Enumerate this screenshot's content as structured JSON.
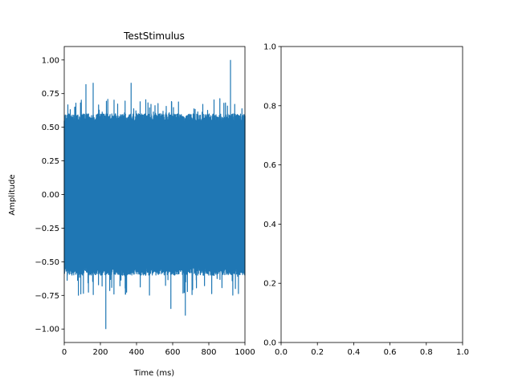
{
  "chart_data": [
    {
      "type": "line",
      "title": "TestStimulus",
      "xlabel": "Time (ms)",
      "ylabel": "Amplitude",
      "xlim": [
        0,
        1000
      ],
      "ylim": [
        -1.1,
        1.1
      ],
      "xticks": [
        0,
        200,
        400,
        600,
        800,
        1000
      ],
      "xtick_labels": [
        "0",
        "200",
        "400",
        "600",
        "800",
        "1000"
      ],
      "yticks": [
        -1.0,
        -0.75,
        -0.5,
        -0.25,
        0.0,
        0.25,
        0.5,
        0.75,
        1.0
      ],
      "ytick_labels": [
        "−1.00",
        "−0.75",
        "−0.50",
        "−0.25",
        "0.00",
        "0.25",
        "0.50",
        "0.75",
        "1.00"
      ],
      "grid": false,
      "series": [
        {
          "color": "#1f77b4",
          "signal": "dense noise",
          "x_range": [
            0,
            1000
          ],
          "envelope_typical": [
            -0.6,
            0.6
          ],
          "extremes": [
            {
              "x": 230,
              "y": -1.0
            },
            {
              "x": 920,
              "y": 1.0
            },
            {
              "x": 670,
              "y": -0.9
            },
            {
              "x": 120,
              "y": 0.82
            },
            {
              "x": 160,
              "y": 0.83
            },
            {
              "x": 370,
              "y": 0.83
            },
            {
              "x": 590,
              "y": -0.85
            }
          ]
        }
      ]
    },
    {
      "type": "line",
      "title": "",
      "xlabel": "",
      "ylabel": "",
      "xlim": [
        0.0,
        1.0
      ],
      "ylim": [
        0.0,
        1.0
      ],
      "xticks": [
        0.0,
        0.2,
        0.4,
        0.6,
        0.8,
        1.0
      ],
      "xtick_labels": [
        "0.0",
        "0.2",
        "0.4",
        "0.6",
        "0.8",
        "1.0"
      ],
      "yticks": [
        0.0,
        0.2,
        0.4,
        0.6,
        0.8,
        1.0
      ],
      "ytick_labels": [
        "0.0",
        "0.2",
        "0.4",
        "0.6",
        "0.8",
        "1.0"
      ],
      "grid": false,
      "series": []
    }
  ]
}
